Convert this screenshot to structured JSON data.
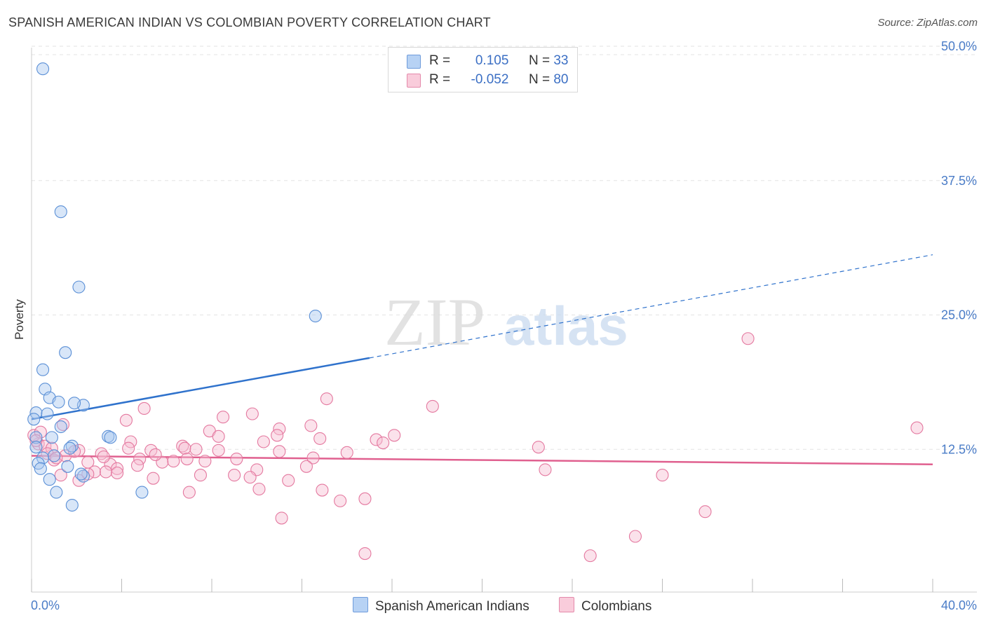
{
  "title": "SPANISH AMERICAN INDIAN VS COLOMBIAN POVERTY CORRELATION CHART",
  "source": "Source: ZipAtlas.com",
  "watermark": {
    "zip": "ZIP",
    "atlas": "atlas"
  },
  "legend_top": {
    "rows": [
      {
        "r_label": "R =",
        "r_value": "0.105",
        "n_label": "N =",
        "n_value": "33"
      },
      {
        "r_label": "R =",
        "r_value": "-0.052",
        "n_label": "N =",
        "n_value": "80"
      }
    ]
  },
  "legend_bottom": {
    "items": [
      "Spanish American Indians",
      "Colombians"
    ]
  },
  "colors": {
    "blue_fill": "#a9c8f0",
    "blue_stroke": "#5a8fd6",
    "blue_line": "#2f72cc",
    "pink_fill": "#f7bfd2",
    "pink_stroke": "#e4789f",
    "pink_line": "#e0608f",
    "grid": "#e3e3e3",
    "axis_text": "#4a7cc7"
  },
  "chart_data": {
    "type": "scatter",
    "title": "SPANISH AMERICAN INDIAN VS COLOMBIAN POVERTY CORRELATION CHART",
    "xlabel": "",
    "ylabel": "Poverty",
    "xlim": [
      0,
      40
    ],
    "ylim": [
      0,
      50
    ],
    "x_tick_labels": [
      "0.0%",
      "40.0%"
    ],
    "y_tick_values": [
      12.5,
      25.0,
      37.5,
      50.0
    ],
    "y_tick_labels": [
      "12.5%",
      "25.0%",
      "37.5%",
      "50.0%"
    ],
    "grid": true,
    "series": [
      {
        "name": "Spanish American Indians",
        "r": 0.105,
        "n": 33,
        "trend": {
          "x0": 0,
          "y0": 15.3,
          "x_solid_end": 15,
          "y_solid_end": 21.0,
          "x1": 40,
          "y1": 30.6
        },
        "points": [
          [
            0.5,
            47.9
          ],
          [
            1.3,
            34.6
          ],
          [
            2.1,
            27.6
          ],
          [
            1.5,
            21.5
          ],
          [
            0.5,
            19.9
          ],
          [
            0.6,
            18.1
          ],
          [
            0.8,
            17.3
          ],
          [
            1.2,
            16.9
          ],
          [
            2.3,
            16.6
          ],
          [
            1.9,
            16.8
          ],
          [
            0.2,
            15.9
          ],
          [
            0.7,
            15.8
          ],
          [
            0.1,
            15.3
          ],
          [
            1.3,
            14.6
          ],
          [
            0.2,
            13.6
          ],
          [
            0.9,
            13.6
          ],
          [
            3.4,
            13.7
          ],
          [
            3.5,
            13.6
          ],
          [
            0.2,
            12.7
          ],
          [
            1.8,
            12.8
          ],
          [
            1.7,
            12.6
          ],
          [
            0.5,
            11.7
          ],
          [
            1.0,
            11.9
          ],
          [
            0.3,
            11.2
          ],
          [
            0.4,
            10.7
          ],
          [
            1.6,
            10.9
          ],
          [
            2.3,
            10.0
          ],
          [
            2.2,
            10.2
          ],
          [
            0.8,
            9.7
          ],
          [
            1.1,
            8.5
          ],
          [
            4.9,
            8.5
          ],
          [
            1.8,
            7.3
          ],
          [
            12.6,
            24.9
          ]
        ]
      },
      {
        "name": "Colombians",
        "r": -0.052,
        "n": 80,
        "trend": {
          "x0": 0,
          "y0": 11.9,
          "x1": 40,
          "y1": 11.1
        },
        "points": [
          [
            31.8,
            22.8
          ],
          [
            13.1,
            17.2
          ],
          [
            17.8,
            16.5
          ],
          [
            5.0,
            16.3
          ],
          [
            8.5,
            15.5
          ],
          [
            9.8,
            15.8
          ],
          [
            1.4,
            14.8
          ],
          [
            4.2,
            15.2
          ],
          [
            12.4,
            14.7
          ],
          [
            39.3,
            14.5
          ],
          [
            7.9,
            14.2
          ],
          [
            11.0,
            14.4
          ],
          [
            10.9,
            13.8
          ],
          [
            16.1,
            13.8
          ],
          [
            12.8,
            13.5
          ],
          [
            8.3,
            13.7
          ],
          [
            4.4,
            13.2
          ],
          [
            15.3,
            13.4
          ],
          [
            15.6,
            13.1
          ],
          [
            0.3,
            13.0
          ],
          [
            10.3,
            13.2
          ],
          [
            0.6,
            12.8
          ],
          [
            6.7,
            12.8
          ],
          [
            0.9,
            12.6
          ],
          [
            2.1,
            12.4
          ],
          [
            4.3,
            12.6
          ],
          [
            5.3,
            12.4
          ],
          [
            6.8,
            12.6
          ],
          [
            7.3,
            12.5
          ],
          [
            8.3,
            12.4
          ],
          [
            11.0,
            12.3
          ],
          [
            14.0,
            12.2
          ],
          [
            22.5,
            12.7
          ],
          [
            0.7,
            12.1
          ],
          [
            1.5,
            11.9
          ],
          [
            3.1,
            12.1
          ],
          [
            1.0,
            11.5
          ],
          [
            1.1,
            11.7
          ],
          [
            4.8,
            11.6
          ],
          [
            6.9,
            11.6
          ],
          [
            7.7,
            11.4
          ],
          [
            9.1,
            11.6
          ],
          [
            12.5,
            11.7
          ],
          [
            2.5,
            11.3
          ],
          [
            3.5,
            11.1
          ],
          [
            4.7,
            11.0
          ],
          [
            5.8,
            11.3
          ],
          [
            6.3,
            11.4
          ],
          [
            3.8,
            10.7
          ],
          [
            2.8,
            10.4
          ],
          [
            3.3,
            10.4
          ],
          [
            3.8,
            10.3
          ],
          [
            10.0,
            10.6
          ],
          [
            12.2,
            10.9
          ],
          [
            22.8,
            10.6
          ],
          [
            2.5,
            10.2
          ],
          [
            7.5,
            10.1
          ],
          [
            9.7,
            9.9
          ],
          [
            1.3,
            10.1
          ],
          [
            9.0,
            10.1
          ],
          [
            5.4,
            9.8
          ],
          [
            2.1,
            9.6
          ],
          [
            11.4,
            9.6
          ],
          [
            28.0,
            10.1
          ],
          [
            10.1,
            8.8
          ],
          [
            12.9,
            8.7
          ],
          [
            7.0,
            8.5
          ],
          [
            13.7,
            7.7
          ],
          [
            14.8,
            7.9
          ],
          [
            11.1,
            6.1
          ],
          [
            29.9,
            6.7
          ],
          [
            26.8,
            4.4
          ],
          [
            14.8,
            2.8
          ],
          [
            24.8,
            2.6
          ],
          [
            0.1,
            13.8
          ],
          [
            0.4,
            14.1
          ],
          [
            1.9,
            12.3
          ],
          [
            0.2,
            13.3
          ],
          [
            3.2,
            11.8
          ],
          [
            5.5,
            12.0
          ]
        ]
      }
    ]
  }
}
